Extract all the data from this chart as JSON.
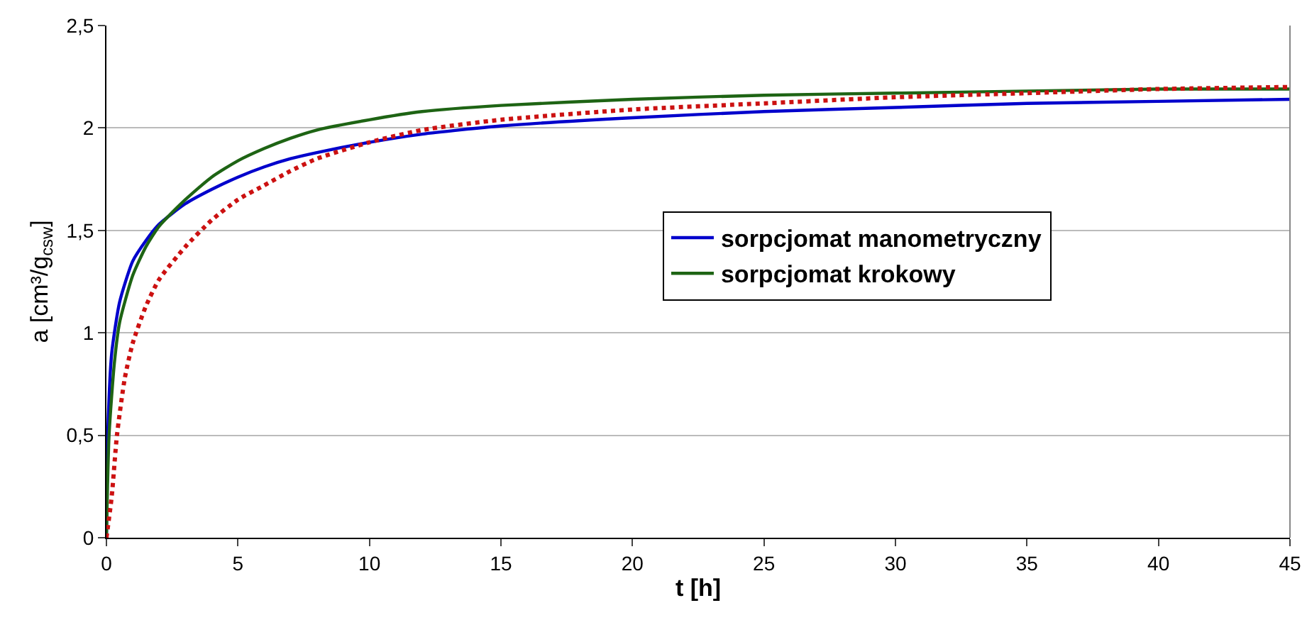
{
  "chart_data": {
    "type": "line",
    "xlabel": "t [h]",
    "ylabel": "a [cm³/g$_{csw}$]",
    "xlim": [
      0,
      45
    ],
    "xticks": [
      0,
      5,
      10,
      15,
      20,
      25,
      30,
      35,
      40,
      45
    ],
    "ylim": [
      0,
      2.5
    ],
    "yticks": [
      {
        "value": 0,
        "label": "0"
      },
      {
        "value": 0.5,
        "label": "0,5"
      },
      {
        "value": 1,
        "label": "1"
      },
      {
        "value": 1.5,
        "label": "1,5"
      },
      {
        "value": 2,
        "label": "2"
      },
      {
        "value": 2.5,
        "label": "2,5"
      }
    ],
    "grid": "y",
    "legend": "right",
    "marker": "none",
    "series": [
      {
        "name": "sorpcjomat manometryczny",
        "color": "#0000cc",
        "line_style": "solid",
        "x": [
          0,
          0.05,
          0.2,
          0.5,
          1,
          1.5,
          2,
          3,
          4,
          5,
          6,
          7,
          8,
          10,
          12,
          15,
          20,
          25,
          30,
          35,
          40,
          45
        ],
        "values": [
          0,
          0.5,
          0.9,
          1.15,
          1.35,
          1.45,
          1.53,
          1.63,
          1.7,
          1.76,
          1.81,
          1.85,
          1.88,
          1.93,
          1.97,
          2.01,
          2.05,
          2.08,
          2.1,
          2.12,
          2.13,
          2.14
        ]
      },
      {
        "name": "sorpcjomat krokowy",
        "color": "#1e6414",
        "line_style": "solid",
        "x": [
          0,
          0.1,
          0.3,
          0.5,
          1,
          1.5,
          2,
          3,
          4,
          5,
          6,
          7,
          8,
          10,
          12,
          15,
          20,
          25,
          30,
          35,
          40,
          45
        ],
        "values": [
          0,
          0.5,
          0.85,
          1.05,
          1.28,
          1.42,
          1.52,
          1.65,
          1.76,
          1.84,
          1.9,
          1.95,
          1.99,
          2.04,
          2.08,
          2.11,
          2.14,
          2.16,
          2.17,
          2.18,
          2.19,
          2.19
        ]
      },
      {
        "color": "#cc1111",
        "line_style": "dotted",
        "x": [
          0,
          0.2,
          0.4,
          0.7,
          1,
          1.5,
          2,
          3,
          4,
          5,
          6,
          7,
          8,
          10,
          12,
          15,
          20,
          25,
          30,
          35,
          40,
          45
        ],
        "values": [
          0,
          0.2,
          0.5,
          0.78,
          0.95,
          1.13,
          1.26,
          1.42,
          1.55,
          1.65,
          1.72,
          1.79,
          1.85,
          1.93,
          1.99,
          2.04,
          2.09,
          2.12,
          2.15,
          2.17,
          2.19,
          2.2
        ]
      }
    ]
  }
}
